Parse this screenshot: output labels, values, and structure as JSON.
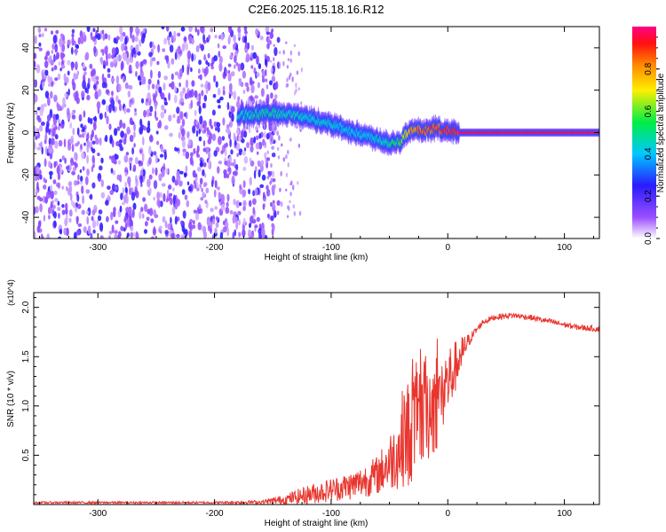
{
  "title": "C2E6.2025.115.18.16.R12",
  "colorbar": {
    "label": "Normalized spectral amplitude",
    "range": [
      0,
      1
    ],
    "ticks": [
      0.0,
      0.2,
      0.4,
      0.6,
      0.8
    ],
    "tick_labels": [
      "0.0",
      "0.2",
      "0.4",
      "0.6",
      "0.8"
    ],
    "colormap": "rainbow (white-violet-blue-cyan-green-yellow-orange-red-magenta)"
  },
  "chart_data": [
    {
      "type": "heatmap",
      "panel": "spectrogram",
      "xlabel": "Height of straight line (km)",
      "ylabel": "Frequency (Hz)",
      "xlim": [
        -355,
        130
      ],
      "ylim": [
        -50,
        50
      ],
      "xticks": [
        -300,
        -200,
        -100,
        0,
        100
      ],
      "xtick_labels": [
        "-300",
        "-200",
        "-100",
        "0",
        "100"
      ],
      "yticks": [
        -40,
        -20,
        0,
        20,
        40
      ],
      "ytick_labels": [
        "-40",
        "-20",
        "0",
        "20",
        "40"
      ],
      "noise_region": {
        "x": [
          -355,
          -155
        ],
        "typical_amplitude": 0.2
      },
      "signal_track": {
        "x": [
          -180,
          -160,
          -140,
          -120,
          -100,
          -80,
          -60,
          -50,
          -40,
          -35,
          -30,
          -20,
          -10,
          0,
          10,
          60,
          130
        ],
        "frequency": [
          8,
          9,
          9,
          7,
          4,
          0,
          -3,
          -5,
          -4,
          0,
          1,
          1,
          2,
          1,
          0,
          0,
          0
        ],
        "amplitude": [
          0.45,
          0.5,
          0.5,
          0.45,
          0.45,
          0.45,
          0.45,
          0.5,
          0.6,
          0.75,
          0.85,
          0.88,
          0.9,
          0.95,
          0.97,
          0.97,
          0.97
        ]
      }
    },
    {
      "type": "line",
      "panel": "snr",
      "xlabel": "Height of straight line (km)",
      "ylabel": "SNR (10 * v/v)",
      "y_multiplier": "(x10^4)",
      "xlim": [
        -355,
        130
      ],
      "ylim": [
        0,
        2.15
      ],
      "xticks": [
        -300,
        -200,
        -100,
        0,
        100
      ],
      "xtick_labels": [
        "-300",
        "-200",
        "-100",
        "0",
        "100"
      ],
      "yticks": [
        0.5,
        1.0,
        1.5,
        2.0
      ],
      "ytick_labels": [
        "0.5",
        "1.0",
        "1.5",
        "2.0"
      ],
      "color": "#e8362f",
      "x": [
        -355,
        -200,
        -160,
        -140,
        -120,
        -100,
        -80,
        -60,
        -45,
        -35,
        -25,
        -15,
        -5,
        0,
        5,
        10,
        15,
        20,
        30,
        40,
        55,
        70,
        90,
        110,
        130
      ],
      "values": [
        0.02,
        0.02,
        0.025,
        0.05,
        0.1,
        0.15,
        0.2,
        0.3,
        0.5,
        0.7,
        0.9,
        1.0,
        1.1,
        1.25,
        1.35,
        1.5,
        1.6,
        1.7,
        1.85,
        1.9,
        1.92,
        1.9,
        1.85,
        1.8,
        1.78
      ],
      "noise_envelope": [
        0.01,
        0.01,
        0.02,
        0.05,
        0.1,
        0.12,
        0.15,
        0.2,
        0.35,
        0.55,
        0.6,
        0.55,
        0.5,
        0.4,
        0.3,
        0.2,
        0.12,
        0.05,
        0.03,
        0.03,
        0.03,
        0.03,
        0.03,
        0.03,
        0.03
      ]
    }
  ]
}
